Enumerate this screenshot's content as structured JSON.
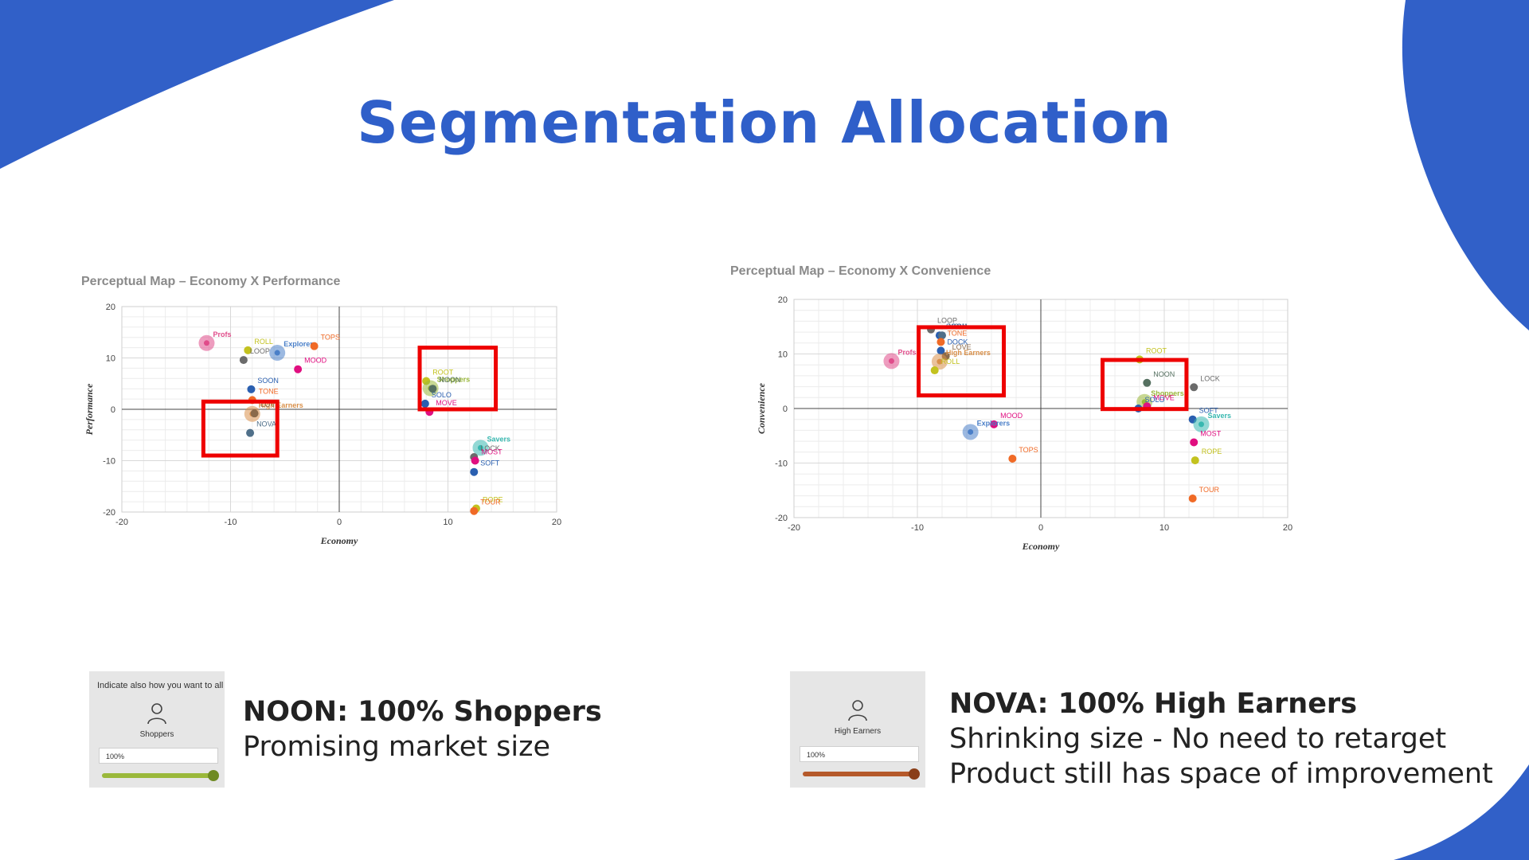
{
  "slide": {
    "title": "Segmentation Allocation",
    "colors": {
      "accent": "#2f5fc9",
      "highlight_box": "#ee0000"
    }
  },
  "chart_data": [
    {
      "type": "scatter",
      "title": "Perceptual Map – Economy X Performance",
      "xlabel": "Economy",
      "ylabel": "Performance",
      "xlim": [
        -20,
        20
      ],
      "ylim": [
        -20,
        20
      ],
      "xticks": [
        -20,
        -10,
        0,
        10,
        20
      ],
      "yticks": [
        -20,
        -10,
        0,
        10,
        20
      ],
      "grid": true,
      "points": [
        {
          "label": "Profs",
          "x": -12.2,
          "y": 12.9,
          "kind": "segment",
          "color": "#e04c8a"
        },
        {
          "label": "ROLL",
          "x": -8.4,
          "y": 11.5,
          "kind": "product",
          "color": "#c3c21f"
        },
        {
          "label": "Explorers",
          "x": -5.7,
          "y": 11.0,
          "kind": "segment",
          "color": "#4a7fc8"
        },
        {
          "label": "TOPS",
          "x": -2.3,
          "y": 12.3,
          "kind": "product",
          "color": "#f06a26"
        },
        {
          "label": "LOOP",
          "x": -8.8,
          "y": 9.6,
          "kind": "product",
          "color": "#6b6b6b"
        },
        {
          "label": "MOOD",
          "x": -3.8,
          "y": 7.8,
          "kind": "product",
          "color": "#e00f80"
        },
        {
          "label": "SOON",
          "x": -8.1,
          "y": 3.9,
          "kind": "product",
          "color": "#2a5fb0"
        },
        {
          "label": "TONE",
          "x": -8.0,
          "y": 1.8,
          "kind": "product",
          "color": "#f06a26"
        },
        {
          "label": "High Earners",
          "x": -8.0,
          "y": -0.9,
          "kind": "segment",
          "color": "#d9904a"
        },
        {
          "label": "LOVE",
          "x": -7.8,
          "y": -0.8,
          "kind": "product",
          "color": "#8a6a4a"
        },
        {
          "label": "NOVA",
          "x": -8.2,
          "y": -4.6,
          "kind": "product",
          "color": "#50708a"
        },
        {
          "label": "ROOT",
          "x": 8.0,
          "y": 5.5,
          "kind": "product",
          "color": "#c3c21f"
        },
        {
          "label": "Shoppers",
          "x": 8.4,
          "y": 4.1,
          "kind": "segment",
          "color": "#9ab83a"
        },
        {
          "label": "NOON",
          "x": 8.6,
          "y": 4.0,
          "kind": "product",
          "color": "#557060"
        },
        {
          "label": "SOLO",
          "x": 7.9,
          "y": 1.1,
          "kind": "product",
          "color": "#2a5fb0"
        },
        {
          "label": "MOVE",
          "x": 8.3,
          "y": -0.5,
          "kind": "product",
          "color": "#e00f80"
        },
        {
          "label": "Savers",
          "x": 13.0,
          "y": -7.5,
          "kind": "segment",
          "color": "#38b8b0"
        },
        {
          "label": "LOCK",
          "x": 12.4,
          "y": -9.3,
          "kind": "product",
          "color": "#6b6b6b"
        },
        {
          "label": "MOST",
          "x": 12.5,
          "y": -10.0,
          "kind": "product",
          "color": "#e00f80"
        },
        {
          "label": "SOFT",
          "x": 12.4,
          "y": -12.2,
          "kind": "product",
          "color": "#2a5fb0"
        },
        {
          "label": "ROPE",
          "x": 12.6,
          "y": -19.3,
          "kind": "product",
          "color": "#c3c21f"
        },
        {
          "label": "TOUR",
          "x": 12.4,
          "y": -19.8,
          "kind": "product",
          "color": "#f06a26"
        }
      ],
      "highlight_boxes": [
        {
          "x": [
            -12.5,
            -5.7
          ],
          "y": [
            -9.0,
            1.5
          ]
        },
        {
          "x": [
            7.4,
            14.4
          ],
          "y": [
            0.0,
            12.0
          ]
        }
      ]
    },
    {
      "type": "scatter",
      "title": "Perceptual Map – Economy X Convenience",
      "xlabel": "Economy",
      "ylabel": "Convenience",
      "xlim": [
        -20,
        20
      ],
      "ylim": [
        -20,
        20
      ],
      "xticks": [
        -20,
        -10,
        0,
        10,
        20
      ],
      "yticks": [
        -20,
        -10,
        0,
        10,
        20
      ],
      "grid": true,
      "points": [
        {
          "label": "LOOP",
          "x": -8.9,
          "y": 14.5,
          "kind": "product",
          "color": "#6b6b6b"
        },
        {
          "label": "SOON",
          "x": -8.2,
          "y": 13.4,
          "kind": "product",
          "color": "#2a5fb0"
        },
        {
          "label": "NOVA",
          "x": -8.0,
          "y": 13.4,
          "kind": "product",
          "color": "#50708a"
        },
        {
          "label": "TONE",
          "x": -8.1,
          "y": 12.2,
          "kind": "product",
          "color": "#f06a26"
        },
        {
          "label": "DOCK",
          "x": -8.1,
          "y": 10.6,
          "kind": "product",
          "color": "#2a5fb0"
        },
        {
          "label": "Profs",
          "x": -12.1,
          "y": 8.7,
          "kind": "segment",
          "color": "#e04c8a"
        },
        {
          "label": "LOVE",
          "x": -7.7,
          "y": 9.6,
          "kind": "product",
          "color": "#8a6a4a"
        },
        {
          "label": "High Earners",
          "x": -8.2,
          "y": 8.6,
          "kind": "segment",
          "color": "#d9904a"
        },
        {
          "label": "ROLL",
          "x": -8.6,
          "y": 7.0,
          "kind": "product",
          "color": "#c3c21f"
        },
        {
          "label": "MOOD",
          "x": -3.8,
          "y": -2.9,
          "kind": "product",
          "color": "#e00f80"
        },
        {
          "label": "Explorers",
          "x": -5.7,
          "y": -4.3,
          "kind": "segment",
          "color": "#4a7fc8"
        },
        {
          "label": "TOPS",
          "x": -2.3,
          "y": -9.2,
          "kind": "product",
          "color": "#f06a26"
        },
        {
          "label": "ROOT",
          "x": 8.0,
          "y": 9.0,
          "kind": "product",
          "color": "#c3c21f"
        },
        {
          "label": "NOON",
          "x": 8.6,
          "y": 4.7,
          "kind": "product",
          "color": "#557060"
        },
        {
          "label": "LOCK",
          "x": 12.4,
          "y": 3.9,
          "kind": "product",
          "color": "#6b6b6b"
        },
        {
          "label": "Shoppers",
          "x": 8.4,
          "y": 1.2,
          "kind": "segment",
          "color": "#9ab83a"
        },
        {
          "label": "MOVE",
          "x": 8.6,
          "y": 0.4,
          "kind": "product",
          "color": "#e00f80"
        },
        {
          "label": "SOLO",
          "x": 7.9,
          "y": 0.0,
          "kind": "product",
          "color": "#2a5fb0"
        },
        {
          "label": "SOFT",
          "x": 12.3,
          "y": -2.0,
          "kind": "product",
          "color": "#2a5fb0"
        },
        {
          "label": "Savers",
          "x": 13.0,
          "y": -2.9,
          "kind": "segment",
          "color": "#38b8b0"
        },
        {
          "label": "MOST",
          "x": 12.4,
          "y": -6.2,
          "kind": "product",
          "color": "#e00f80"
        },
        {
          "label": "ROPE",
          "x": 12.5,
          "y": -9.5,
          "kind": "product",
          "color": "#c3c21f"
        },
        {
          "label": "TOUR",
          "x": 12.3,
          "y": -16.5,
          "kind": "product",
          "color": "#f06a26"
        }
      ],
      "highlight_boxes": [
        {
          "x": [
            -9.9,
            -3.0
          ],
          "y": [
            2.4,
            14.9
          ]
        },
        {
          "x": [
            5.0,
            11.8
          ],
          "y": [
            -0.1,
            8.9
          ]
        }
      ]
    }
  ],
  "allocations": [
    {
      "thumb_header": "Indicate also how you want to all",
      "segment": "Shoppers",
      "percent": "100%",
      "fill_fraction": 1.0,
      "slider_color": "#9ab83a",
      "knob_color": "#6e8a22",
      "heading": "NOON: 100% Shoppers",
      "lines": [
        "Promising market size"
      ]
    },
    {
      "thumb_header": "",
      "segment": "High Earners",
      "percent": "100%",
      "fill_fraction": 1.0,
      "slider_color": "#b5592a",
      "knob_color": "#8a3e18",
      "heading": "NOVA: 100% High Earners",
      "lines": [
        "Shrinking size - No need to retarget",
        "Product still has space of improvement"
      ]
    }
  ]
}
